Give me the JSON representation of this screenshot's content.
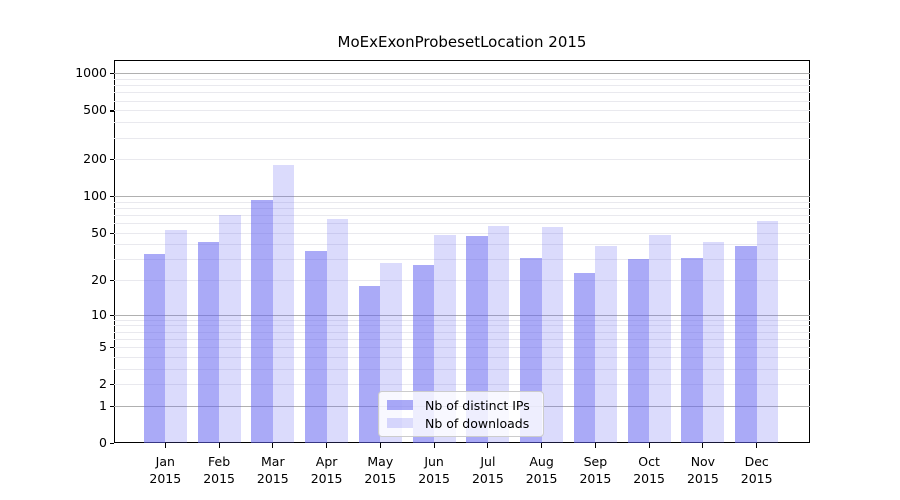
{
  "chart_data": {
    "type": "bar",
    "title": "MoExExonProbesetLocation 2015",
    "categories": [
      "Jan 2015",
      "Feb 2015",
      "Mar 2015",
      "Apr 2015",
      "May 2015",
      "Jun 2015",
      "Jul 2015",
      "Aug 2015",
      "Sep 2015",
      "Oct 2015",
      "Nov 2015",
      "Dec 2015"
    ],
    "series": [
      {
        "name": "Nb of distinct IPs",
        "color": "#6464f0",
        "alpha": 0.55,
        "values": [
          33,
          42,
          93,
          35,
          18,
          27,
          47,
          31,
          23,
          30,
          31,
          39
        ]
      },
      {
        "name": "Nb of downloads",
        "color": "#6464f0",
        "alpha": 0.23,
        "values": [
          53,
          70,
          180,
          65,
          28,
          48,
          57,
          56,
          39,
          48,
          42,
          62
        ]
      }
    ],
    "y_axis": {
      "scale": "log1p",
      "tick_values": [
        0,
        1,
        2,
        5,
        10,
        20,
        50,
        100,
        200,
        500,
        1000
      ],
      "major_grid_values": [
        1,
        10,
        100,
        1000
      ],
      "ylim": [
        0,
        1280
      ],
      "grid": true
    },
    "legend": {
      "position": "lower center"
    }
  },
  "colors": {
    "major_grid": "#b0b0b0",
    "minor_grid": "#e9e9ee",
    "axis": "#000000",
    "background": "#ffffff"
  }
}
